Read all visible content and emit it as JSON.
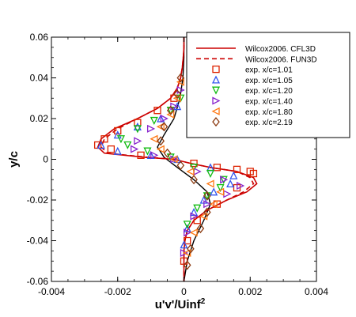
{
  "chart_data": {
    "type": "scatter",
    "title": "",
    "xlabel": "u'v'/Uinf",
    "xlabel_superscript": "2",
    "ylabel": "y/c",
    "xlim": [
      -0.004,
      0.004
    ],
    "ylim": [
      -0.06,
      0.06
    ],
    "xticks": [
      -0.004,
      -0.002,
      0,
      0.002,
      0.004
    ],
    "xtick_labels": [
      "-0.004",
      "-0.002",
      "0",
      "0.002",
      "0.004"
    ],
    "yticks": [
      -0.06,
      -0.04,
      -0.02,
      0,
      0.02,
      0.04,
      0.06
    ],
    "ytick_labels": [
      "-0.06",
      "-0.04",
      "-0.02",
      "0",
      "0.02",
      "0.04",
      "0.06"
    ],
    "grid": false,
    "legend_position": "top-right",
    "lines": [
      {
        "name": "Wilcox2006. CFL3D",
        "color": "#cc0000",
        "dash": "solid",
        "points": [
          [
            0,
            0.06
          ],
          [
            0,
            0.055
          ],
          [
            -2e-05,
            0.05
          ],
          [
            -5e-05,
            0.045
          ],
          [
            -0.0001,
            0.04
          ],
          [
            -0.0002,
            0.035
          ],
          [
            -0.0004,
            0.03
          ],
          [
            -0.0008,
            0.025
          ],
          [
            -0.0014,
            0.02
          ],
          [
            -0.0021,
            0.015
          ],
          [
            -0.0025,
            0.01
          ],
          [
            -0.0026,
            0.006
          ],
          [
            -0.0024,
            0.003
          ],
          [
            -0.0012,
            0.001
          ],
          [
            -0.0003,
            0.0
          ],
          [
            0.0002,
            -0.002
          ],
          [
            0.0008,
            -0.004
          ],
          [
            0.0016,
            -0.006
          ],
          [
            0.0021,
            -0.009
          ],
          [
            0.0022,
            -0.012
          ],
          [
            0.0019,
            -0.016
          ],
          [
            0.0013,
            -0.02
          ],
          [
            0.0007,
            -0.025
          ],
          [
            0.0003,
            -0.03
          ],
          [
            0.0001,
            -0.035
          ],
          [
            3e-05,
            -0.04
          ],
          [
            0,
            -0.045
          ],
          [
            0,
            -0.05
          ],
          [
            0,
            -0.06
          ]
        ]
      },
      {
        "name": "Wilcox2006. FUN3D",
        "color": "#cc0000",
        "dash": "dashed",
        "points": [
          [
            0,
            0.06
          ],
          [
            0,
            0.055
          ],
          [
            -2e-05,
            0.05
          ],
          [
            -5e-05,
            0.045
          ],
          [
            -0.0001,
            0.04
          ],
          [
            -0.0002,
            0.035
          ],
          [
            -0.0004,
            0.03
          ],
          [
            -0.0008,
            0.025
          ],
          [
            -0.0014,
            0.02
          ],
          [
            -0.002,
            0.015
          ],
          [
            -0.0024,
            0.01
          ],
          [
            -0.0025,
            0.006
          ],
          [
            -0.0023,
            0.003
          ],
          [
            -0.0011,
            0.001
          ],
          [
            -0.0003,
            0.0
          ],
          [
            0.0002,
            -0.002
          ],
          [
            0.0008,
            -0.004
          ],
          [
            0.0016,
            -0.006
          ],
          [
            0.002,
            -0.009
          ],
          [
            0.0021,
            -0.012
          ],
          [
            0.0018,
            -0.016
          ],
          [
            0.0013,
            -0.02
          ],
          [
            0.0007,
            -0.025
          ],
          [
            0.0003,
            -0.03
          ],
          [
            0.0001,
            -0.035
          ],
          [
            3e-05,
            -0.04
          ],
          [
            0,
            -0.045
          ],
          [
            0,
            -0.05
          ],
          [
            0,
            -0.06
          ]
        ]
      }
    ],
    "extra_lines": [
      {
        "color": "#000000",
        "points": [
          [
            0,
            0.06
          ],
          [
            0,
            0.05
          ],
          [
            -3e-05,
            0.04
          ],
          [
            -0.00012,
            0.03
          ],
          [
            -0.0003,
            0.02
          ],
          [
            -0.0006,
            0.012
          ],
          [
            -0.0008,
            0.006
          ],
          [
            -0.0006,
            0.001
          ],
          [
            -0.0002,
            -0.004
          ],
          [
            0.0003,
            -0.01
          ],
          [
            0.0007,
            -0.016
          ],
          [
            0.0008,
            -0.022
          ],
          [
            0.0006,
            -0.03
          ],
          [
            0.0003,
            -0.04
          ],
          [
            0.0001,
            -0.05
          ],
          [
            0,
            -0.06
          ]
        ]
      }
    ],
    "series": [
      {
        "name": "exp. x/c=1.01",
        "marker": "square",
        "color": "#dd2200",
        "points": [
          [
            -0.0003,
            0.03
          ],
          [
            -0.0008,
            0.024
          ],
          [
            -0.0014,
            0.018
          ],
          [
            -0.002,
            0.014
          ],
          [
            -0.0024,
            0.01
          ],
          [
            -0.0026,
            0.007
          ],
          [
            -0.0022,
            0.005
          ],
          [
            -0.0013,
            0.002
          ],
          [
            0.0003,
            -0.002
          ],
          [
            0.001,
            -0.004
          ],
          [
            0.0016,
            -0.005
          ],
          [
            0.002,
            -0.006
          ],
          [
            0.0021,
            -0.007
          ],
          [
            0.0016,
            -0.014
          ],
          [
            0.001,
            -0.022
          ],
          [
            0.0004,
            -0.03
          ],
          [
            0.0001,
            -0.04
          ],
          [
            0,
            -0.05
          ]
        ]
      },
      {
        "name": "exp. x/c=1.05",
        "marker": "triangle-up",
        "color": "#3355ee",
        "points": [
          [
            -0.0002,
            0.026
          ],
          [
            -0.0007,
            0.02
          ],
          [
            -0.0014,
            0.016
          ],
          [
            -0.002,
            0.012
          ],
          [
            -0.0025,
            0.007
          ],
          [
            -0.002,
            0.004
          ],
          [
            -0.001,
            0.002
          ],
          [
            -0.0002,
            0.0
          ],
          [
            0.0008,
            -0.004
          ],
          [
            0.0015,
            -0.008
          ],
          [
            0.0014,
            -0.012
          ],
          [
            0.0009,
            -0.016
          ],
          [
            0.0006,
            -0.02
          ],
          [
            0.0003,
            -0.026
          ],
          [
            0.0001,
            -0.034
          ],
          [
            0,
            -0.042
          ]
        ]
      },
      {
        "name": "exp. x/c=1.20",
        "marker": "triangle-down",
        "color": "#11bb11",
        "points": [
          [
            -0.0001,
            0.03
          ],
          [
            -0.0004,
            0.024
          ],
          [
            -0.0009,
            0.019
          ],
          [
            -0.0014,
            0.015
          ],
          [
            -0.0019,
            0.01
          ],
          [
            -0.0017,
            0.007
          ],
          [
            -0.0011,
            0.004
          ],
          [
            -0.0004,
            0.001
          ],
          [
            0.0003,
            -0.004
          ],
          [
            0.0008,
            -0.007
          ],
          [
            0.0012,
            -0.01
          ],
          [
            0.0011,
            -0.014
          ],
          [
            0.0007,
            -0.018
          ],
          [
            0.0004,
            -0.024
          ],
          [
            0.0001,
            -0.032
          ]
        ]
      },
      {
        "name": "exp. x/c=1.40",
        "marker": "triangle-right",
        "color": "#8822cc",
        "points": [
          [
            -0.0001,
            0.034
          ],
          [
            -0.0003,
            0.026
          ],
          [
            -0.0006,
            0.02
          ],
          [
            -0.001,
            0.015
          ],
          [
            -0.0014,
            0.009
          ],
          [
            -0.0015,
            0.005
          ],
          [
            -0.0009,
            0.002
          ],
          [
            -0.0003,
            0.0
          ],
          [
            0.0004,
            -0.006
          ],
          [
            0.0012,
            -0.01
          ],
          [
            0.0017,
            -0.013
          ],
          [
            0.0013,
            -0.017
          ],
          [
            0.0007,
            -0.022
          ],
          [
            0.0003,
            -0.028
          ],
          [
            0.0001,
            -0.036
          ],
          [
            0,
            -0.046
          ]
        ]
      },
      {
        "name": "exp. x/c=1.80",
        "marker": "triangle-left",
        "color": "#ff7711",
        "points": [
          [
            -0.0001,
            0.038
          ],
          [
            -0.0002,
            0.03
          ],
          [
            -0.0004,
            0.022
          ],
          [
            -0.0007,
            0.016
          ],
          [
            -0.0009,
            0.01
          ],
          [
            -0.0007,
            0.005
          ],
          [
            -0.0003,
            0.0
          ],
          [
            0.0002,
            -0.006
          ],
          [
            0.0008,
            -0.012
          ],
          [
            0.0011,
            -0.016
          ],
          [
            0.0009,
            -0.022
          ],
          [
            0.0006,
            -0.028
          ],
          [
            0.0003,
            -0.036
          ],
          [
            0.0001,
            -0.046
          ]
        ]
      },
      {
        "name": "exp. x/c=2.19",
        "marker": "diamond",
        "color": "#8b3a10",
        "points": [
          [
            -0.0001,
            0.04
          ],
          [
            -0.0002,
            0.032
          ],
          [
            -0.0004,
            0.024
          ],
          [
            -0.0006,
            0.016
          ],
          [
            -0.0007,
            0.009
          ],
          [
            -0.0005,
            0.003
          ],
          [
            -0.0001,
            -0.003
          ],
          [
            0.0003,
            -0.01
          ],
          [
            0.0007,
            -0.018
          ],
          [
            0.0007,
            -0.026
          ],
          [
            0.0005,
            -0.034
          ],
          [
            0.0002,
            -0.044
          ],
          [
            0.0001,
            -0.052
          ]
        ]
      }
    ]
  }
}
